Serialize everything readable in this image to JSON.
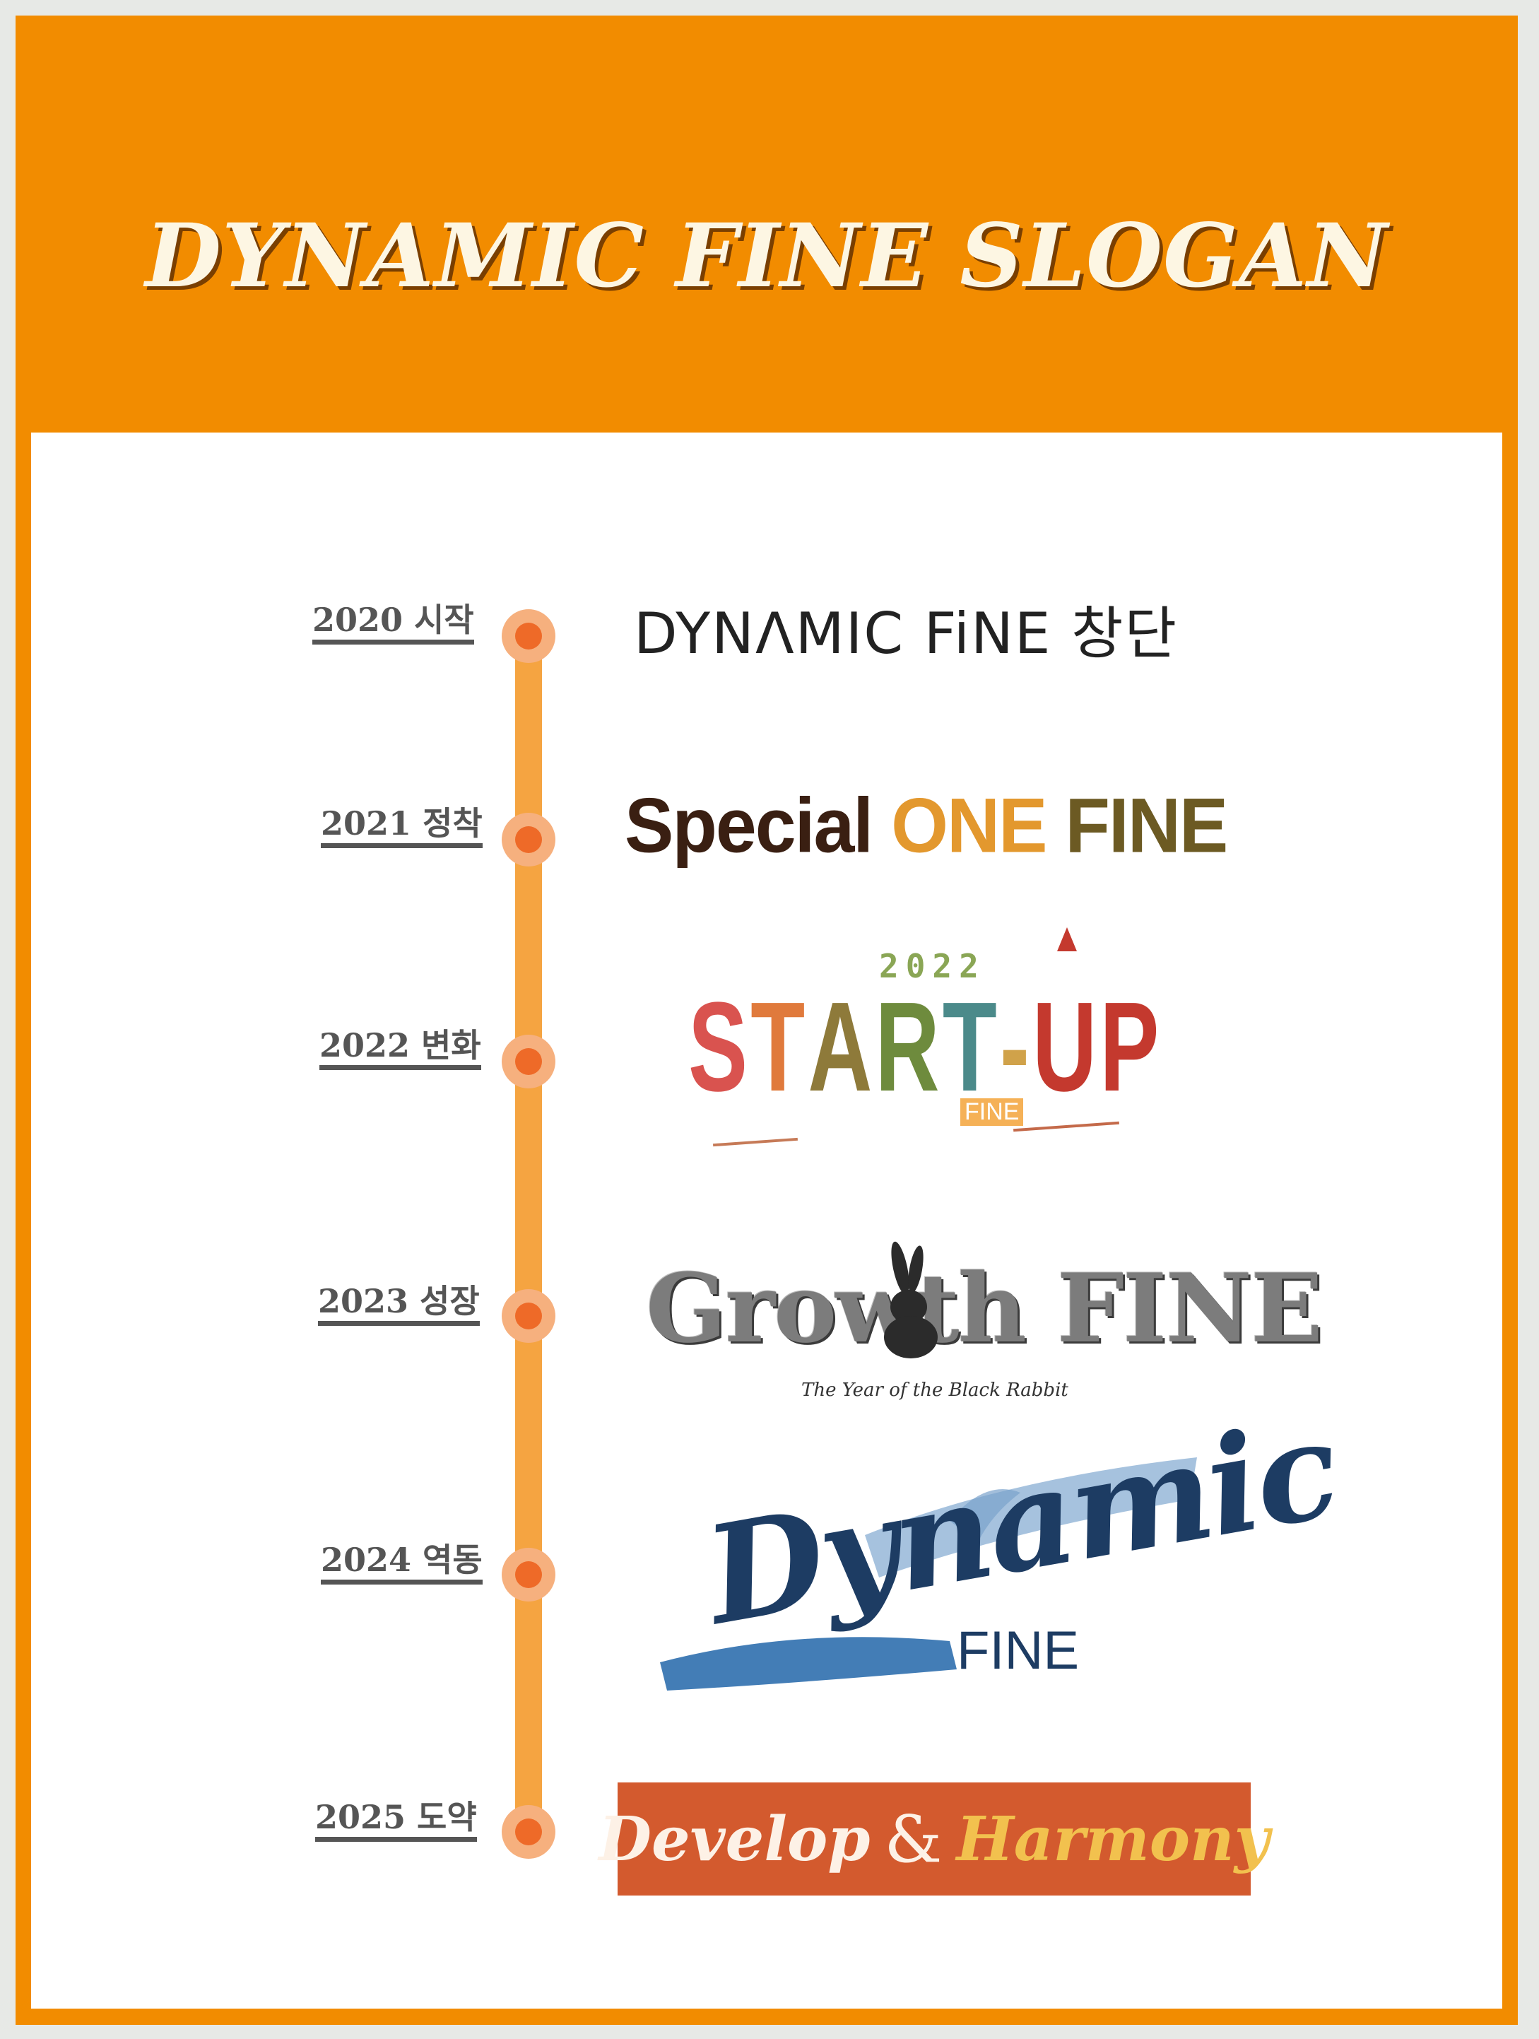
{
  "header": {
    "title": "DYNAMIC FINE SLOGAN"
  },
  "timeline": [
    {
      "year": "2020 시작",
      "logo_text": "DYNΛMIC FiNE 창단"
    },
    {
      "year": "2021 정착",
      "logo_parts": [
        "Special",
        "ONE",
        "FINE"
      ]
    },
    {
      "year": "2022 변화",
      "logo_year": "2022",
      "logo_word": "START-UP",
      "logo_tag": "FINE"
    },
    {
      "year": "2023 성장",
      "logo_word": "Growth FINE",
      "logo_sub": "The Year of the Black Rabbit"
    },
    {
      "year": "2024 역동",
      "logo_word": "Dynamic",
      "logo_tag": "FINE"
    },
    {
      "year": "2025 도약",
      "logo_parts": [
        "Develop",
        "&",
        "Harmony"
      ]
    }
  ],
  "colors": {
    "frame": "#f28c00",
    "timeline": "#f5a441",
    "dot": "#ee6a28",
    "banner": "#d35a2e"
  }
}
